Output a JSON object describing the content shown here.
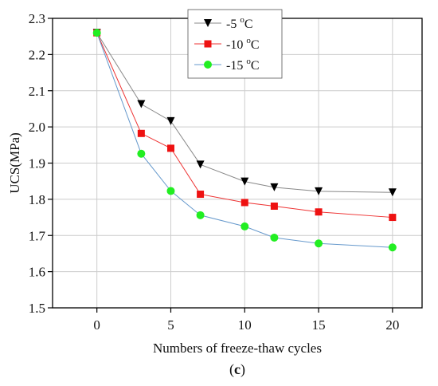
{
  "chart_data": {
    "type": "line",
    "xlabel": "Numbers of freeze-thaw cycles",
    "ylabel": "UCS(MPa)",
    "panel_label_open": "(",
    "panel_label_letter": "c",
    "panel_label_close": ")",
    "xlim": [
      -3,
      22
    ],
    "ylim": [
      1.5,
      2.3
    ],
    "xticks": [
      0,
      5,
      10,
      15,
      20
    ],
    "yticks": [
      1.5,
      1.6,
      1.7,
      1.8,
      1.9,
      2.0,
      2.1,
      2.2,
      2.3
    ],
    "x": [
      0,
      3,
      5,
      7,
      10,
      12,
      15,
      20
    ],
    "grid": true,
    "legend_position": "top-center",
    "series": [
      {
        "name_base": "-5 ",
        "name_sup": "o",
        "name_unit": "C",
        "marker": "triangle-down",
        "color": "#000000",
        "line_color": "#888888",
        "values": [
          2.26,
          2.063,
          2.016,
          1.896,
          1.849,
          1.833,
          1.822,
          1.819
        ]
      },
      {
        "name_base": "-10 ",
        "name_sup": "o",
        "name_unit": "C",
        "marker": "square",
        "color": "#ee1111",
        "line_color": "#ee3333",
        "values": [
          2.26,
          1.982,
          1.941,
          1.814,
          1.791,
          1.781,
          1.765,
          1.75
        ]
      },
      {
        "name_base": "-15 ",
        "name_sup": "o",
        "name_unit": "C",
        "marker": "circle",
        "color": "#22ee22",
        "line_color": "#6699cc",
        "values": [
          2.26,
          1.926,
          1.823,
          1.756,
          1.725,
          1.694,
          1.678,
          1.667
        ]
      }
    ]
  }
}
